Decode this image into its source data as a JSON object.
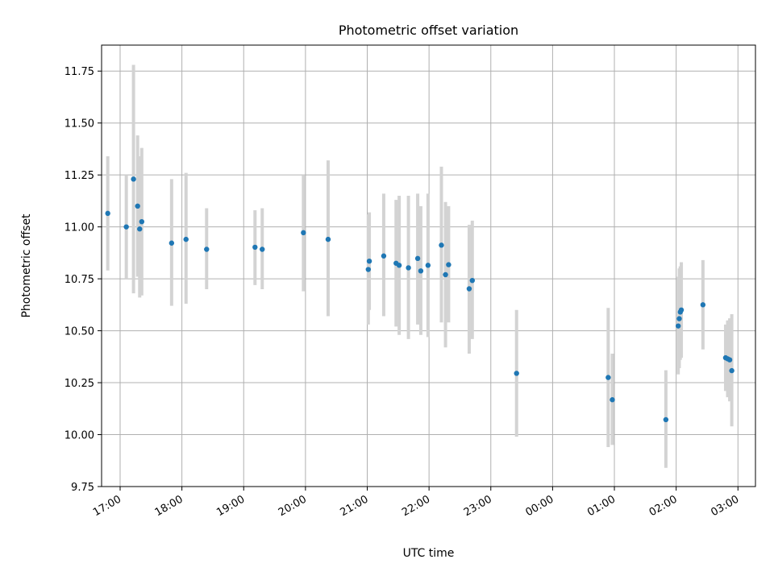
{
  "chart_data": {
    "type": "scatter",
    "title": "Photometric offset variation",
    "xlabel": "UTC time",
    "ylabel": "Photometric offset",
    "x_tick_labels": [
      "17:00",
      "18:00",
      "19:00",
      "20:00",
      "21:00",
      "22:00",
      "23:00",
      "00:00",
      "01:00",
      "02:00",
      "03:00"
    ],
    "x_tick_times": [
      "17:00",
      "18:00",
      "19:00",
      "20:00",
      "21:00",
      "22:00",
      "23:00",
      "24:00",
      "25:00",
      "26:00",
      "27:00"
    ],
    "xlim": [
      "16:42",
      "27:17"
    ],
    "ylim": [
      9.75,
      11.875
    ],
    "y_ticks": [
      9.75,
      10.0,
      10.25,
      10.5,
      10.75,
      11.0,
      11.25,
      11.5,
      11.75
    ],
    "y_tick_labels": [
      "9.75",
      "10.00",
      "10.25",
      "10.50",
      "10.75",
      "11.00",
      "11.25",
      "11.50",
      "11.75"
    ],
    "grid": true,
    "colors": {
      "point": "#1f77b4",
      "errorbar": "#d3d3d3",
      "grid": "#b0b0b0"
    },
    "points": [
      {
        "time": "16:48",
        "y": 11.065,
        "ylo": 10.79,
        "yhi": 11.34
      },
      {
        "time": "17:06",
        "y": 11.0,
        "ylo": 10.75,
        "yhi": 11.25
      },
      {
        "time": "17:13",
        "y": 11.23,
        "ylo": 10.68,
        "yhi": 11.78
      },
      {
        "time": "17:17",
        "y": 11.1,
        "ylo": 10.76,
        "yhi": 11.44
      },
      {
        "time": "17:19",
        "y": 10.99,
        "ylo": 10.66,
        "yhi": 11.34
      },
      {
        "time": "17:21",
        "y": 11.025,
        "ylo": 10.67,
        "yhi": 11.38
      },
      {
        "time": "17:50",
        "y": 10.922,
        "ylo": 10.62,
        "yhi": 11.23
      },
      {
        "time": "18:04",
        "y": 10.94,
        "ylo": 10.63,
        "yhi": 11.26
      },
      {
        "time": "18:24",
        "y": 10.892,
        "ylo": 10.7,
        "yhi": 11.09
      },
      {
        "time": "19:11",
        "y": 10.902,
        "ylo": 10.72,
        "yhi": 11.08
      },
      {
        "time": "19:18",
        "y": 10.892,
        "ylo": 10.7,
        "yhi": 11.09
      },
      {
        "time": "19:58",
        "y": 10.972,
        "ylo": 10.69,
        "yhi": 11.25
      },
      {
        "time": "20:22",
        "y": 10.94,
        "ylo": 10.57,
        "yhi": 11.32
      },
      {
        "time": "21:01",
        "y": 10.795,
        "ylo": 10.53,
        "yhi": 11.06
      },
      {
        "time": "21:02",
        "y": 10.835,
        "ylo": 10.6,
        "yhi": 11.07
      },
      {
        "time": "21:16",
        "y": 10.86,
        "ylo": 10.57,
        "yhi": 11.16
      },
      {
        "time": "21:28",
        "y": 10.825,
        "ylo": 10.52,
        "yhi": 11.13
      },
      {
        "time": "21:31",
        "y": 10.815,
        "ylo": 10.48,
        "yhi": 11.15
      },
      {
        "time": "21:40",
        "y": 10.803,
        "ylo": 10.46,
        "yhi": 11.15
      },
      {
        "time": "21:49",
        "y": 10.848,
        "ylo": 10.53,
        "yhi": 11.16
      },
      {
        "time": "21:52",
        "y": 10.788,
        "ylo": 10.48,
        "yhi": 11.1
      },
      {
        "time": "21:59",
        "y": 10.815,
        "ylo": 10.47,
        "yhi": 11.16
      },
      {
        "time": "22:12",
        "y": 10.912,
        "ylo": 10.54,
        "yhi": 11.29
      },
      {
        "time": "22:16",
        "y": 10.77,
        "ylo": 10.42,
        "yhi": 11.12
      },
      {
        "time": "22:19",
        "y": 10.818,
        "ylo": 10.54,
        "yhi": 11.1
      },
      {
        "time": "22:39",
        "y": 10.702,
        "ylo": 10.39,
        "yhi": 11.01
      },
      {
        "time": "22:42",
        "y": 10.742,
        "ylo": 10.46,
        "yhi": 11.03
      },
      {
        "time": "23:25",
        "y": 10.295,
        "ylo": 9.99,
        "yhi": 10.6
      },
      {
        "time": "24:54",
        "y": 10.275,
        "ylo": 9.94,
        "yhi": 10.61
      },
      {
        "time": "24:58",
        "y": 10.168,
        "ylo": 9.95,
        "yhi": 10.39
      },
      {
        "time": "25:50",
        "y": 10.072,
        "ylo": 9.84,
        "yhi": 10.31
      },
      {
        "time": "26:02",
        "y": 10.523,
        "ylo": 10.29,
        "yhi": 10.76
      },
      {
        "time": "26:03",
        "y": 10.558,
        "ylo": 10.32,
        "yhi": 10.8
      },
      {
        "time": "26:04",
        "y": 10.59,
        "ylo": 10.36,
        "yhi": 10.81
      },
      {
        "time": "26:05",
        "y": 10.6,
        "ylo": 10.37,
        "yhi": 10.83
      },
      {
        "time": "26:26",
        "y": 10.625,
        "ylo": 10.41,
        "yhi": 10.84
      },
      {
        "time": "26:48",
        "y": 10.37,
        "ylo": 10.21,
        "yhi": 10.53
      },
      {
        "time": "26:50",
        "y": 10.365,
        "ylo": 10.18,
        "yhi": 10.55
      },
      {
        "time": "26:52",
        "y": 10.36,
        "ylo": 10.16,
        "yhi": 10.56
      },
      {
        "time": "26:54",
        "y": 10.308,
        "ylo": 10.04,
        "yhi": 10.58
      }
    ]
  }
}
